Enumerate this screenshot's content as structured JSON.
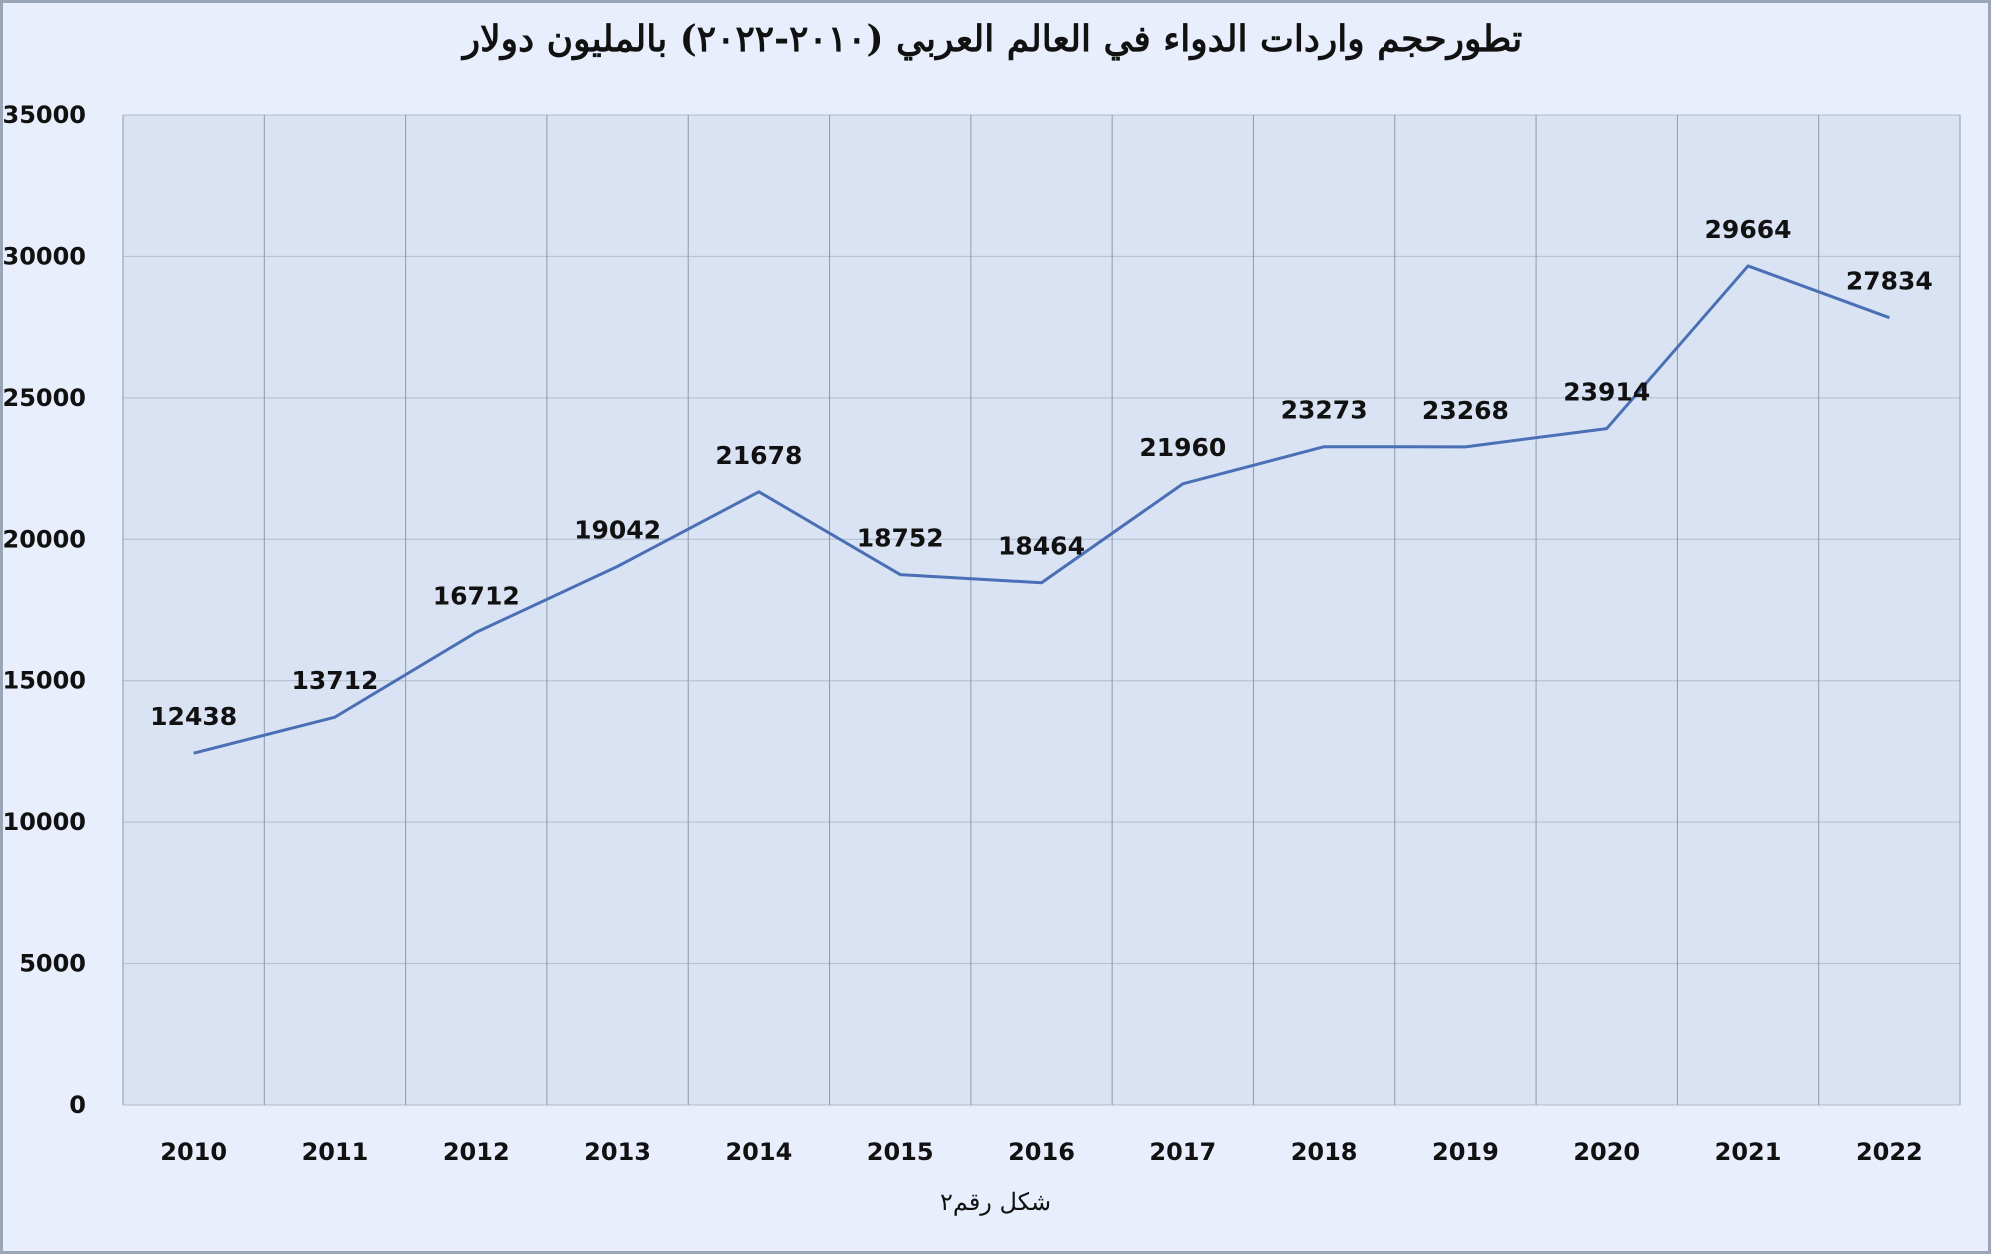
{
  "chart_data": {
    "type": "line",
    "title": "تطورحجم واردات الدواء في العالم العربي (٢٠١٠-٢٠٢٢) بالمليون دولار",
    "caption": "شكل رقم٢",
    "categories": [
      "2010",
      "2011",
      "2012",
      "2013",
      "2014",
      "2015",
      "2016",
      "2017",
      "2018",
      "2019",
      "2020",
      "2021",
      "2022"
    ],
    "values": [
      12438,
      13712,
      16712,
      19042,
      21678,
      18752,
      18464,
      21960,
      23273,
      23268,
      23914,
      29664,
      27834
    ],
    "yticks": [
      0,
      5000,
      10000,
      15000,
      20000,
      25000,
      30000,
      35000
    ],
    "ylim": [
      0,
      35000
    ],
    "grid": true,
    "data_labels": true,
    "colors": {
      "line": "#4a6fb5",
      "plot_bg": "#d9e3f4",
      "grid": "#b0bccd",
      "frame_bg": "#e8eefb"
    }
  }
}
